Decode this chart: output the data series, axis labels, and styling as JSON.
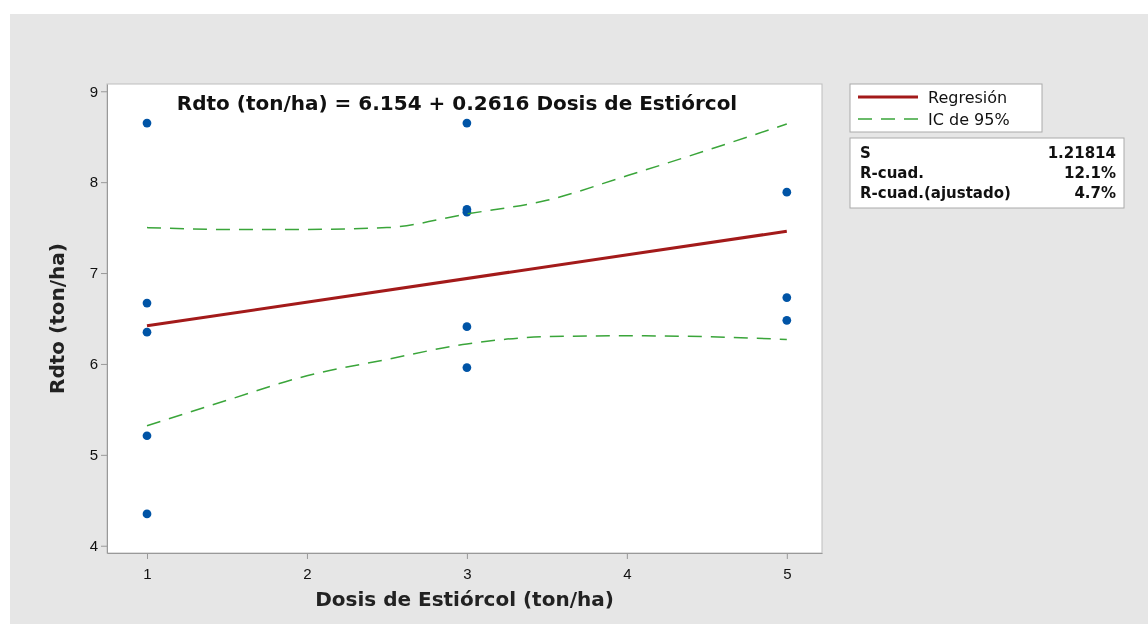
{
  "chart_data": {
    "type": "scatter",
    "title": "Rdto (ton/ha) = 6.154 + 0.2616 Dosis de Estiórcol",
    "xlabel": "Dosis de Estiórcol (ton/ha)",
    "ylabel": "Rdto (ton/ha)",
    "xlim": [
      0.75,
      5.22
    ],
    "xticks": [
      1,
      2,
      3,
      4,
      5
    ],
    "ylim": [
      3.92,
      9.08
    ],
    "yticks": [
      4,
      5,
      6,
      7,
      8,
      9
    ],
    "legend": "right",
    "series": [
      {
        "marker": "circle",
        "color": "#0054a6",
        "x": [
          1,
          1,
          1,
          1,
          1,
          3,
          3,
          3,
          3,
          3,
          5,
          5,
          5
        ],
        "values": [
          8.65,
          6.67,
          6.35,
          5.21,
          4.35,
          8.65,
          7.7,
          7.67,
          6.41,
          5.96,
          7.89,
          6.73,
          6.48
        ]
      },
      {
        "type": "line",
        "name": "Regresión",
        "color": "#a31a1a",
        "line_style": "solid",
        "x": [
          1,
          5
        ],
        "values": [
          6.42,
          7.46
        ]
      },
      {
        "type": "line",
        "name": "IC de 95%",
        "color": "#3aa53a",
        "line_style": "dashed",
        "x": [
          1,
          1.5,
          2,
          2.5,
          3,
          3.5,
          4,
          4.5,
          5
        ],
        "values": [
          7.5,
          7.48,
          7.48,
          7.5,
          7.65,
          7.8,
          8.07,
          8.35,
          8.64
        ]
      },
      {
        "type": "line",
        "color": "#3aa53a",
        "line_style": "dashed",
        "x": [
          1,
          1.5,
          2,
          2.5,
          3,
          3.5,
          4,
          4.5,
          5
        ],
        "values": [
          5.32,
          5.6,
          5.87,
          6.05,
          6.22,
          6.3,
          6.31,
          6.3,
          6.27
        ]
      }
    ],
    "annotations": [
      "S 1.21814",
      "R-cuad. 12.1%",
      "R-cuad.(ajustado) 4.7%"
    ]
  }
}
